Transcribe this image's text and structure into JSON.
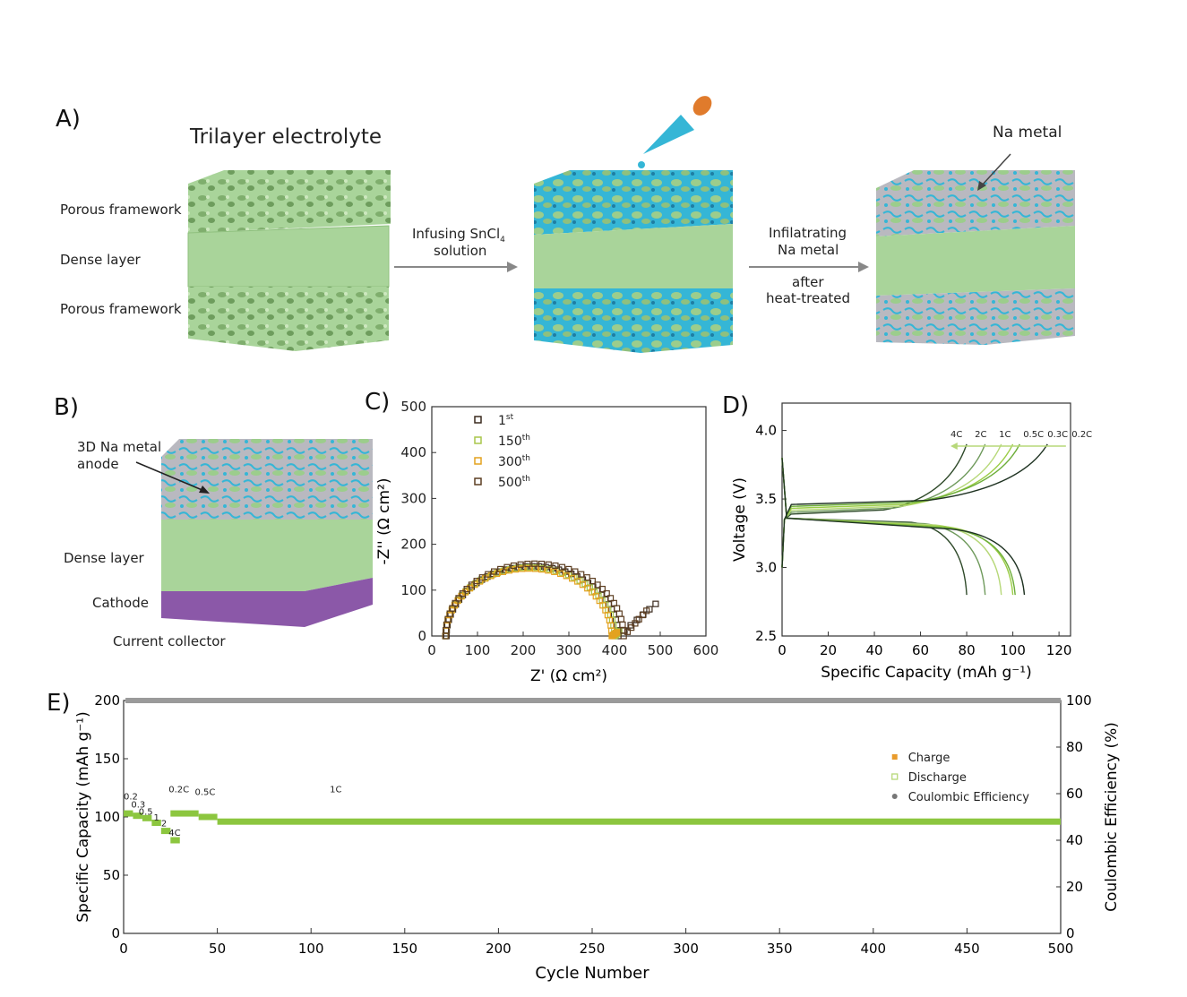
{
  "panels": {
    "a": "A)",
    "b": "B)",
    "c": "C)",
    "d": "D)",
    "e": "E)"
  },
  "panel_a": {
    "title": "Trilayer electrolyte",
    "layer_top": "Porous framework",
    "layer_mid": "Dense layer",
    "layer_bottom": "Porous framework",
    "step1_line1": "Infusing SnCl",
    "step1_sub": "4",
    "step1_line2": "solution",
    "step2_line1": "Infilatrating",
    "step2_line2": "Na metal",
    "step2_line3": "after",
    "step2_line4": "heat-treated",
    "na_metal": "Na metal",
    "colors": {
      "green": "#a9d49a",
      "green_dark": "#8fc07e",
      "blue": "#35b6d6",
      "gray": "#b9b9c0",
      "purple": "#8b58a8",
      "orange": "#e07b2c"
    }
  },
  "panel_b": {
    "anode_line1": "3D Na metal",
    "anode_line2": "anode",
    "dense": "Dense layer",
    "cathode": "Cathode",
    "collector": "Current collector"
  },
  "chart_data": [
    {
      "id": "C",
      "type": "scatter",
      "xlabel": "Z' (Ω cm²)",
      "ylabel": "-Z'' (Ω cm²)",
      "xlim": [
        0,
        600
      ],
      "ylim": [
        0,
        500
      ],
      "xticks": [
        0,
        100,
        200,
        300,
        400,
        500,
        600
      ],
      "yticks": [
        0,
        100,
        200,
        300,
        400,
        500
      ],
      "series": [
        {
          "name": "1",
          "sup": "st",
          "color": "#3a2a1e",
          "center": 220,
          "radius": 188,
          "tail_end": [
            490,
            70
          ]
        },
        {
          "name": "150",
          "sup": "th",
          "color": "#a8c64a",
          "center": 215,
          "radius": 185,
          "tail_end": [
            410,
            10
          ]
        },
        {
          "name": "300",
          "sup": "th",
          "color": "#e3a21f",
          "center": 212,
          "radius": 182,
          "tail_end": [
            405,
            8
          ]
        },
        {
          "name": "500",
          "sup": "th",
          "color": "#5c3e22",
          "center": 225,
          "radius": 195,
          "tail_end": [
            470,
            55
          ]
        }
      ],
      "peak_values": {
        "x": 220,
        "y": 152
      }
    },
    {
      "id": "D",
      "type": "line",
      "xlabel": "Specific Capacity (mAh g⁻¹)",
      "ylabel": "Voltage (V)",
      "xlim": [
        0,
        125
      ],
      "ylim": [
        2.5,
        4.2
      ],
      "xticks": [
        0,
        20,
        40,
        60,
        80,
        100,
        120
      ],
      "yticks": [
        2.5,
        3.0,
        3.5,
        4.0
      ],
      "rates": [
        "4C",
        "2C",
        "1C",
        "0.5C",
        "0.3C",
        "0.2C"
      ],
      "charge_end": [
        80,
        88,
        95,
        100,
        103,
        115
      ],
      "discharge_end": [
        80,
        88,
        95,
        100,
        101,
        105
      ],
      "colors": [
        "#2f4a2a",
        "#6f9a5c",
        "#b7d879",
        "#9bcd46",
        "#6dae3a",
        "#1f3322"
      ]
    },
    {
      "id": "E",
      "type": "scatter",
      "xlabel": "Cycle Number",
      "ylabel": "Specific Capacity (mAh g⁻¹)",
      "y2label": "Coulombic Efficiency (%)",
      "xlim": [
        0,
        500
      ],
      "ylim": [
        0,
        200
      ],
      "y2lim": [
        0,
        100
      ],
      "xticks": [
        0,
        50,
        100,
        150,
        200,
        250,
        300,
        350,
        400,
        450,
        500
      ],
      "yticks": [
        0,
        50,
        100,
        150,
        200
      ],
      "y2ticks": [
        0,
        20,
        40,
        60,
        80,
        100
      ],
      "legend": [
        "Charge",
        "Discharge",
        "Coulombic Efficiency"
      ],
      "rate_labels": [
        "0.2",
        "0.3",
        "0.5",
        "1",
        "2",
        "4C",
        "0.2C",
        "0.5C",
        "1C"
      ],
      "rate_steps": [
        {
          "from": 0,
          "to": 5,
          "value": 103
        },
        {
          "from": 5,
          "to": 10,
          "value": 101
        },
        {
          "from": 10,
          "to": 15,
          "value": 99
        },
        {
          "from": 15,
          "to": 20,
          "value": 95
        },
        {
          "from": 20,
          "to": 25,
          "value": 88
        },
        {
          "from": 25,
          "to": 30,
          "value": 80
        },
        {
          "from": 25,
          "to": 40,
          "value": 103
        },
        {
          "from": 40,
          "to": 50,
          "value": 100
        },
        {
          "from": 50,
          "to": 500,
          "value": 96
        }
      ],
      "coulombic_efficiency": 100
    }
  ]
}
